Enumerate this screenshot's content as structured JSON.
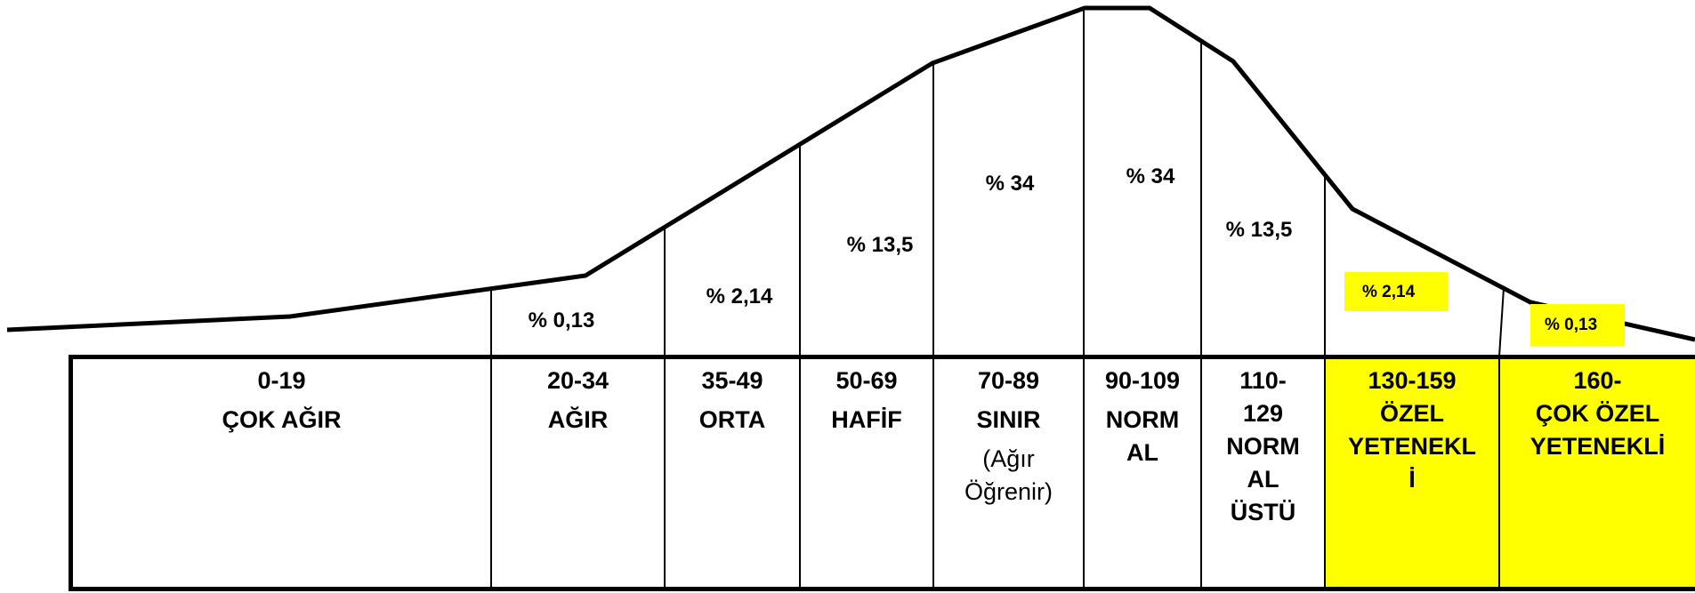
{
  "colors": {
    "highlight": "#FFFF00",
    "line": "#000000",
    "background": "#FFFFFF"
  },
  "curve_labels": [
    {
      "text": "% 0,13"
    },
    {
      "text": "% 2,14"
    },
    {
      "text": "% 13,5"
    },
    {
      "text": "% 34"
    },
    {
      "text": "% 34"
    },
    {
      "text": "% 13,5"
    },
    {
      "text": "% 2,14",
      "highlighted": true
    },
    {
      "text": "% 0,13",
      "highlighted": true
    }
  ],
  "table": {
    "columns": [
      {
        "lines": [
          "0-19",
          "ÇOK AĞIR"
        ],
        "highlighted": false
      },
      {
        "lines": [
          "20-34",
          "AĞIR"
        ],
        "highlighted": false
      },
      {
        "lines": [
          "35-49",
          "ORTA"
        ],
        "highlighted": false
      },
      {
        "lines": [
          "50-69",
          "HAFİF"
        ],
        "highlighted": false
      },
      {
        "lines": [
          "70-89",
          "SINIR"
        ],
        "note_lines": [
          "(Ağır",
          "Öğrenir)"
        ],
        "highlighted": false
      },
      {
        "lines": [
          "90-109",
          "NORM",
          "AL"
        ],
        "highlighted": false
      },
      {
        "lines": [
          "110-",
          "129",
          "NORM",
          "AL",
          "ÜSTÜ"
        ],
        "highlighted": false
      },
      {
        "lines": [
          "130-159",
          "ÖZEL",
          "YETENEKL",
          "İ"
        ],
        "highlighted": true
      },
      {
        "lines": [
          "160-",
          "ÇOK ÖZEL",
          "YETENEKLİ"
        ],
        "highlighted": true
      }
    ]
  }
}
